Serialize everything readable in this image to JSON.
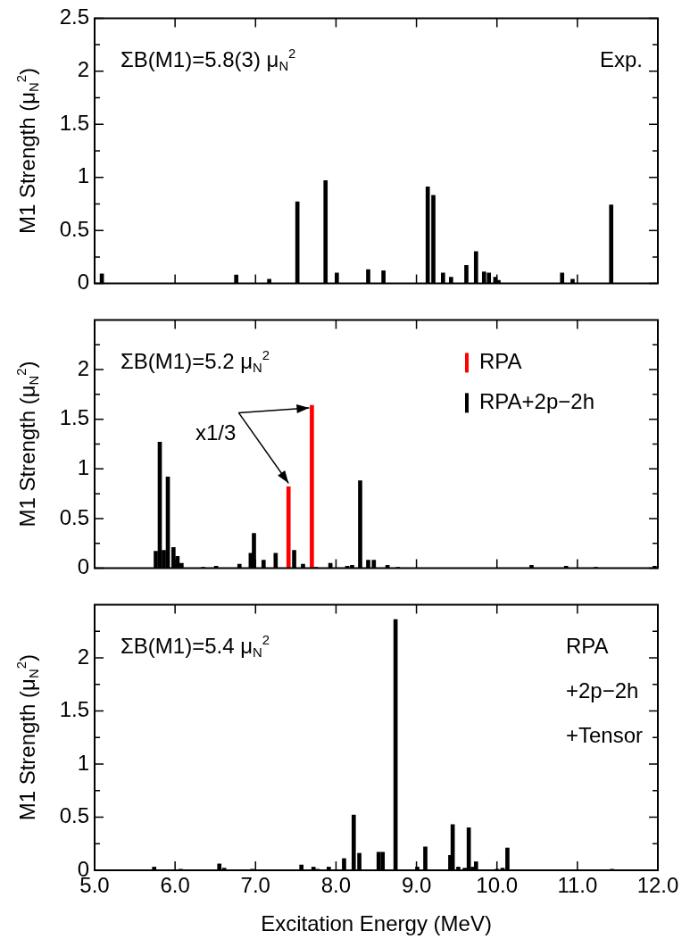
{
  "chart_data": [
    {
      "type": "bar",
      "ylabel": "M1 Strength (μ$_{N}$$^{2}$)",
      "annotations": [
        "ΣB(M1)=5.8(3) μ$_{N}$$^{2}$",
        "Exp."
      ],
      "series": [
        {
          "color": "#000000",
          "x": [
            5.09,
            6.76,
            7.17,
            7.52,
            7.87,
            8.01,
            8.4,
            8.59,
            9.14,
            9.21,
            9.33,
            9.43,
            9.62,
            9.74,
            9.84,
            9.9,
            9.98,
            10.02,
            10.81,
            10.94,
            11.42
          ],
          "values": [
            0.09,
            0.08,
            0.04,
            0.77,
            0.97,
            0.1,
            0.13,
            0.12,
            0.91,
            0.83,
            0.1,
            0.06,
            0.17,
            0.3,
            0.11,
            0.1,
            0.06,
            0.03,
            0.1,
            0.04,
            0.74
          ]
        }
      ],
      "xlim": [
        5,
        12
      ],
      "xticks": [
        5,
        6,
        7,
        8,
        9,
        10,
        11,
        12
      ],
      "ylim": [
        0,
        2.5
      ],
      "yticks": [
        0,
        {
          "value": 0.25,
          "label": null
        },
        0.5,
        {
          "value": 0.75,
          "label": null
        },
        1,
        {
          "value": 1.25,
          "label": null
        },
        1.5,
        {
          "value": 1.75,
          "label": null
        },
        2,
        {
          "value": 2.25,
          "label": null
        },
        2.5
      ],
      "tick_labels": "y"
    },
    {
      "type": "bar",
      "ylabel": "M1 Strength (μ$_{N}$$^{2}$)",
      "annotations": [
        "ΣB(M1)=5.2 μ$_{N}$$^{2}$",
        {
          "text": "x1/3",
          "x": 7.7,
          "y": 1.64
        }
      ],
      "legend": "top right",
      "series": [
        {
          "name": "RPA",
          "color": "#ff0000",
          "x": [
            7.41,
            7.7
          ],
          "values": [
            0.82,
            1.64
          ]
        },
        {
          "name": "RPA+2p−2h",
          "color": "#000000",
          "x": [
            5.76,
            5.81,
            5.86,
            5.91,
            5.98,
            6.03,
            6.08,
            6.35,
            6.51,
            6.8,
            6.94,
            6.98,
            7.1,
            7.25,
            7.48,
            7.59,
            7.75,
            7.93,
            8.14,
            8.2,
            8.3,
            8.4,
            8.47,
            8.64,
            8.77,
            10.43,
            10.86,
            11.23,
            11.96
          ],
          "values": [
            0.17,
            1.27,
            0.18,
            0.92,
            0.21,
            0.12,
            0.05,
            0.01,
            0.02,
            0.04,
            0.15,
            0.35,
            0.08,
            0.15,
            0.18,
            0.04,
            0.01,
            0.05,
            0.02,
            0.03,
            0.88,
            0.08,
            0.08,
            0.03,
            0.01,
            0.03,
            0.02,
            0.01,
            0.02
          ]
        }
      ],
      "xlim": [
        5,
        12
      ],
      "xticks": [
        5,
        6,
        7,
        8,
        9,
        10,
        11,
        12
      ],
      "ylim": [
        0,
        2.5
      ],
      "yticks": [
        0,
        {
          "value": 0.25,
          "label": null
        },
        0.5,
        {
          "value": 0.75,
          "label": null
        },
        1,
        {
          "value": 1.25,
          "label": null
        },
        1.5,
        {
          "value": 1.75,
          "label": null
        },
        2,
        {
          "value": 2.25,
          "label": null
        }
      ],
      "tick_labels": "y"
    },
    {
      "type": "bar",
      "ylabel": "M1 Strength (μ$_{N}$$^{2}$)",
      "xlabel": "Excitation Energy (MeV)",
      "annotations": [
        "ΣB(M1)=5.4 μ$_{N}$$^{2}$",
        "RPA\n+2p−2h\n+Tensor"
      ],
      "series": [
        {
          "color": "#000000",
          "x": [
            5.74,
            6.07,
            6.55,
            6.61,
            6.96,
            7.57,
            7.72,
            7.77,
            7.91,
            8.1,
            8.22,
            8.29,
            8.53,
            8.58,
            8.74,
            9.01,
            9.11,
            9.42,
            9.45,
            9.52,
            9.6,
            9.65,
            9.7,
            9.74,
            10.0,
            10.07,
            10.13,
            11.43
          ],
          "values": [
            0.03,
            0.01,
            0.06,
            0.02,
            0.01,
            0.05,
            0.03,
            0.01,
            0.03,
            0.11,
            0.52,
            0.16,
            0.17,
            0.17,
            2.36,
            0.03,
            0.22,
            0.14,
            0.43,
            0.03,
            0.02,
            0.4,
            0.03,
            0.08,
            0.01,
            0.02,
            0.21,
            0.01
          ]
        }
      ],
      "xlim": [
        5,
        12
      ],
      "xticks": [
        {
          "value": 5,
          "label": "5.0"
        },
        {
          "value": 6,
          "label": "6.0"
        },
        {
          "value": 7,
          "label": "7.0"
        },
        {
          "value": 8,
          "label": "8.0"
        },
        {
          "value": 9,
          "label": "9.0"
        },
        {
          "value": 10,
          "label": "10.0"
        },
        {
          "value": 11,
          "label": "11.0"
        },
        {
          "value": 12,
          "label": "12.0"
        }
      ],
      "ylim": [
        0,
        2.5
      ],
      "yticks": [
        0,
        {
          "value": 0.25,
          "label": null
        },
        0.5,
        {
          "value": 0.75,
          "label": null
        },
        1,
        {
          "value": 1.25,
          "label": null
        },
        1.5,
        {
          "value": 1.75,
          "label": null
        },
        2,
        {
          "value": 2.25,
          "label": null
        }
      ]
    }
  ]
}
